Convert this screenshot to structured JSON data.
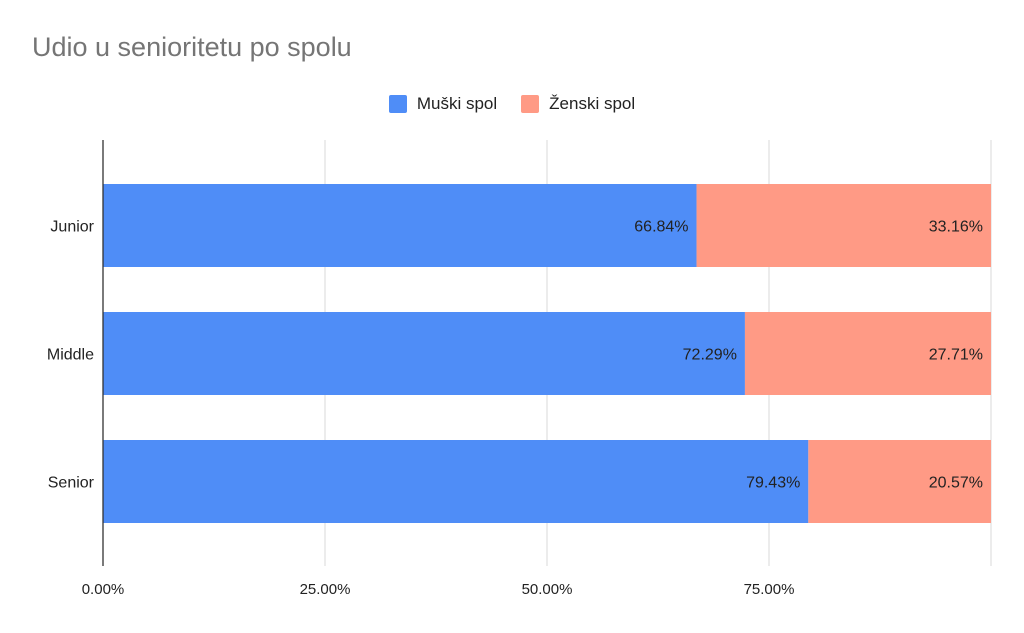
{
  "chart_data": {
    "type": "bar",
    "orientation": "horizontal",
    "stacked": true,
    "title": "Udio u senioritetu po spolu",
    "categories": [
      "Junior",
      "Middle",
      "Senior"
    ],
    "series": [
      {
        "name": "Muški spol",
        "color": "#4f8df7",
        "values": [
          66.84,
          72.29,
          79.43
        ],
        "labels": [
          "66.84%",
          "72.29%",
          "79.43%"
        ]
      },
      {
        "name": "Ženski spol",
        "color": "#ff9a85",
        "values": [
          33.16,
          27.71,
          20.57
        ],
        "labels": [
          "33.16%",
          "27.71%",
          "20.57%"
        ]
      }
    ],
    "xlim": [
      0,
      100
    ],
    "xticks": [
      0,
      25,
      50,
      75,
      100
    ],
    "xtick_labels": [
      "0.00%",
      "25.00%",
      "50.00%",
      "75.00%",
      ""
    ],
    "grid": true,
    "legend_position": "top"
  }
}
